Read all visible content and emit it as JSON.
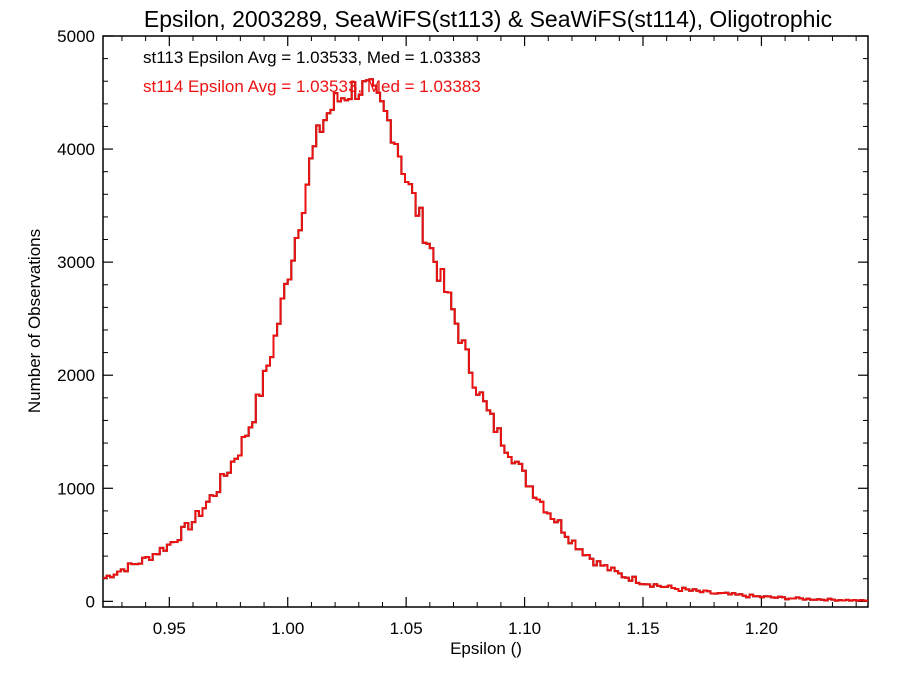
{
  "chart_data": {
    "type": "line",
    "title": "Epsilon, 2003289, SeaWiFS(st113) & SeaWiFS(st114), Oligotrophic",
    "xlabel": "Epsilon ()",
    "ylabel": "Number of Observations",
    "xlim": [
      0.922,
      1.245
    ],
    "ylim": [
      -50,
      5000
    ],
    "x_ticks": [
      "0.95",
      "1.00",
      "1.05",
      "1.10",
      "1.15",
      "1.20"
    ],
    "y_ticks": [
      "0",
      "1000",
      "2000",
      "3000",
      "4000",
      "5000"
    ],
    "annotations": [
      {
        "text": "st113 Epsilon Avg = 1.03533, Med = 1.03383",
        "color": "#000000"
      },
      {
        "text": "st114 Epsilon Avg = 1.03533, Med = 1.03383",
        "color": "#ee1111"
      }
    ],
    "series": [
      {
        "name": "st113",
        "color": "#000000",
        "x": [
          0.922,
          0.93,
          0.94,
          0.95,
          0.96,
          0.97,
          0.98,
          0.985,
          0.99,
          0.995,
          1.0,
          1.005,
          1.01,
          1.015,
          1.02,
          1.025,
          1.03,
          1.035,
          1.04,
          1.045,
          1.05,
          1.055,
          1.06,
          1.065,
          1.07,
          1.075,
          1.08,
          1.085,
          1.09,
          1.095,
          1.1,
          1.105,
          1.11,
          1.115,
          1.12,
          1.13,
          1.14,
          1.15,
          1.16,
          1.17,
          1.18,
          1.19,
          1.2,
          1.21,
          1.22,
          1.23,
          1.245
        ],
        "y": [
          200,
          280,
          370,
          500,
          700,
          980,
          1350,
          1600,
          1950,
          2350,
          2850,
          3350,
          3900,
          4250,
          4400,
          4500,
          4550,
          4500,
          4350,
          4150,
          3750,
          3450,
          3150,
          2850,
          2550,
          2200,
          1900,
          1650,
          1450,
          1300,
          1100,
          950,
          800,
          680,
          540,
          350,
          240,
          170,
          125,
          95,
          70,
          55,
          40,
          30,
          20,
          15,
          5
        ]
      },
      {
        "name": "st114",
        "color": "#ee1111",
        "x": [
          0.922,
          0.93,
          0.94,
          0.95,
          0.96,
          0.97,
          0.98,
          0.985,
          0.99,
          0.995,
          1.0,
          1.005,
          1.01,
          1.015,
          1.02,
          1.025,
          1.03,
          1.035,
          1.04,
          1.045,
          1.05,
          1.055,
          1.06,
          1.065,
          1.07,
          1.075,
          1.08,
          1.085,
          1.09,
          1.095,
          1.1,
          1.105,
          1.11,
          1.115,
          1.12,
          1.13,
          1.14,
          1.15,
          1.16,
          1.17,
          1.18,
          1.19,
          1.2,
          1.21,
          1.22,
          1.23,
          1.245
        ],
        "y": [
          200,
          280,
          370,
          500,
          700,
          980,
          1350,
          1600,
          1950,
          2350,
          2850,
          3350,
          3900,
          4250,
          4400,
          4500,
          4550,
          4500,
          4350,
          4150,
          3750,
          3450,
          3150,
          2850,
          2550,
          2200,
          1900,
          1650,
          1450,
          1300,
          1100,
          950,
          800,
          680,
          540,
          350,
          240,
          170,
          125,
          95,
          70,
          55,
          40,
          30,
          20,
          15,
          5
        ]
      }
    ],
    "grid": false,
    "legend": "top-left"
  }
}
